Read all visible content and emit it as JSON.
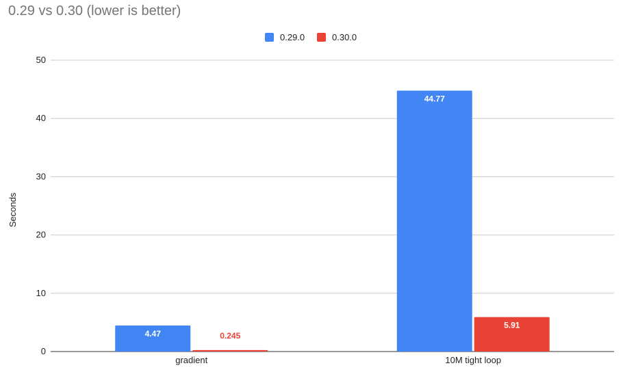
{
  "chart_data": {
    "type": "bar",
    "title": "0.29 vs 0.30 (lower is better)",
    "xlabel": "",
    "ylabel": "Seconds",
    "categories": [
      "gradient",
      "10M tight loop"
    ],
    "series": [
      {
        "name": "0.29.0",
        "color": "#4285f4",
        "values": [
          4.47,
          44.77
        ],
        "labels": [
          "4.47",
          "44.77"
        ]
      },
      {
        "name": "0.30.0",
        "color": "#ea4335",
        "values": [
          0.245,
          5.91
        ],
        "labels": [
          "0.245",
          "5.91"
        ]
      }
    ],
    "ylim": [
      0,
      50
    ],
    "yticks": [
      "0",
      "10",
      "20",
      "30",
      "40",
      "50"
    ],
    "grid": true,
    "legend_position": "top"
  }
}
